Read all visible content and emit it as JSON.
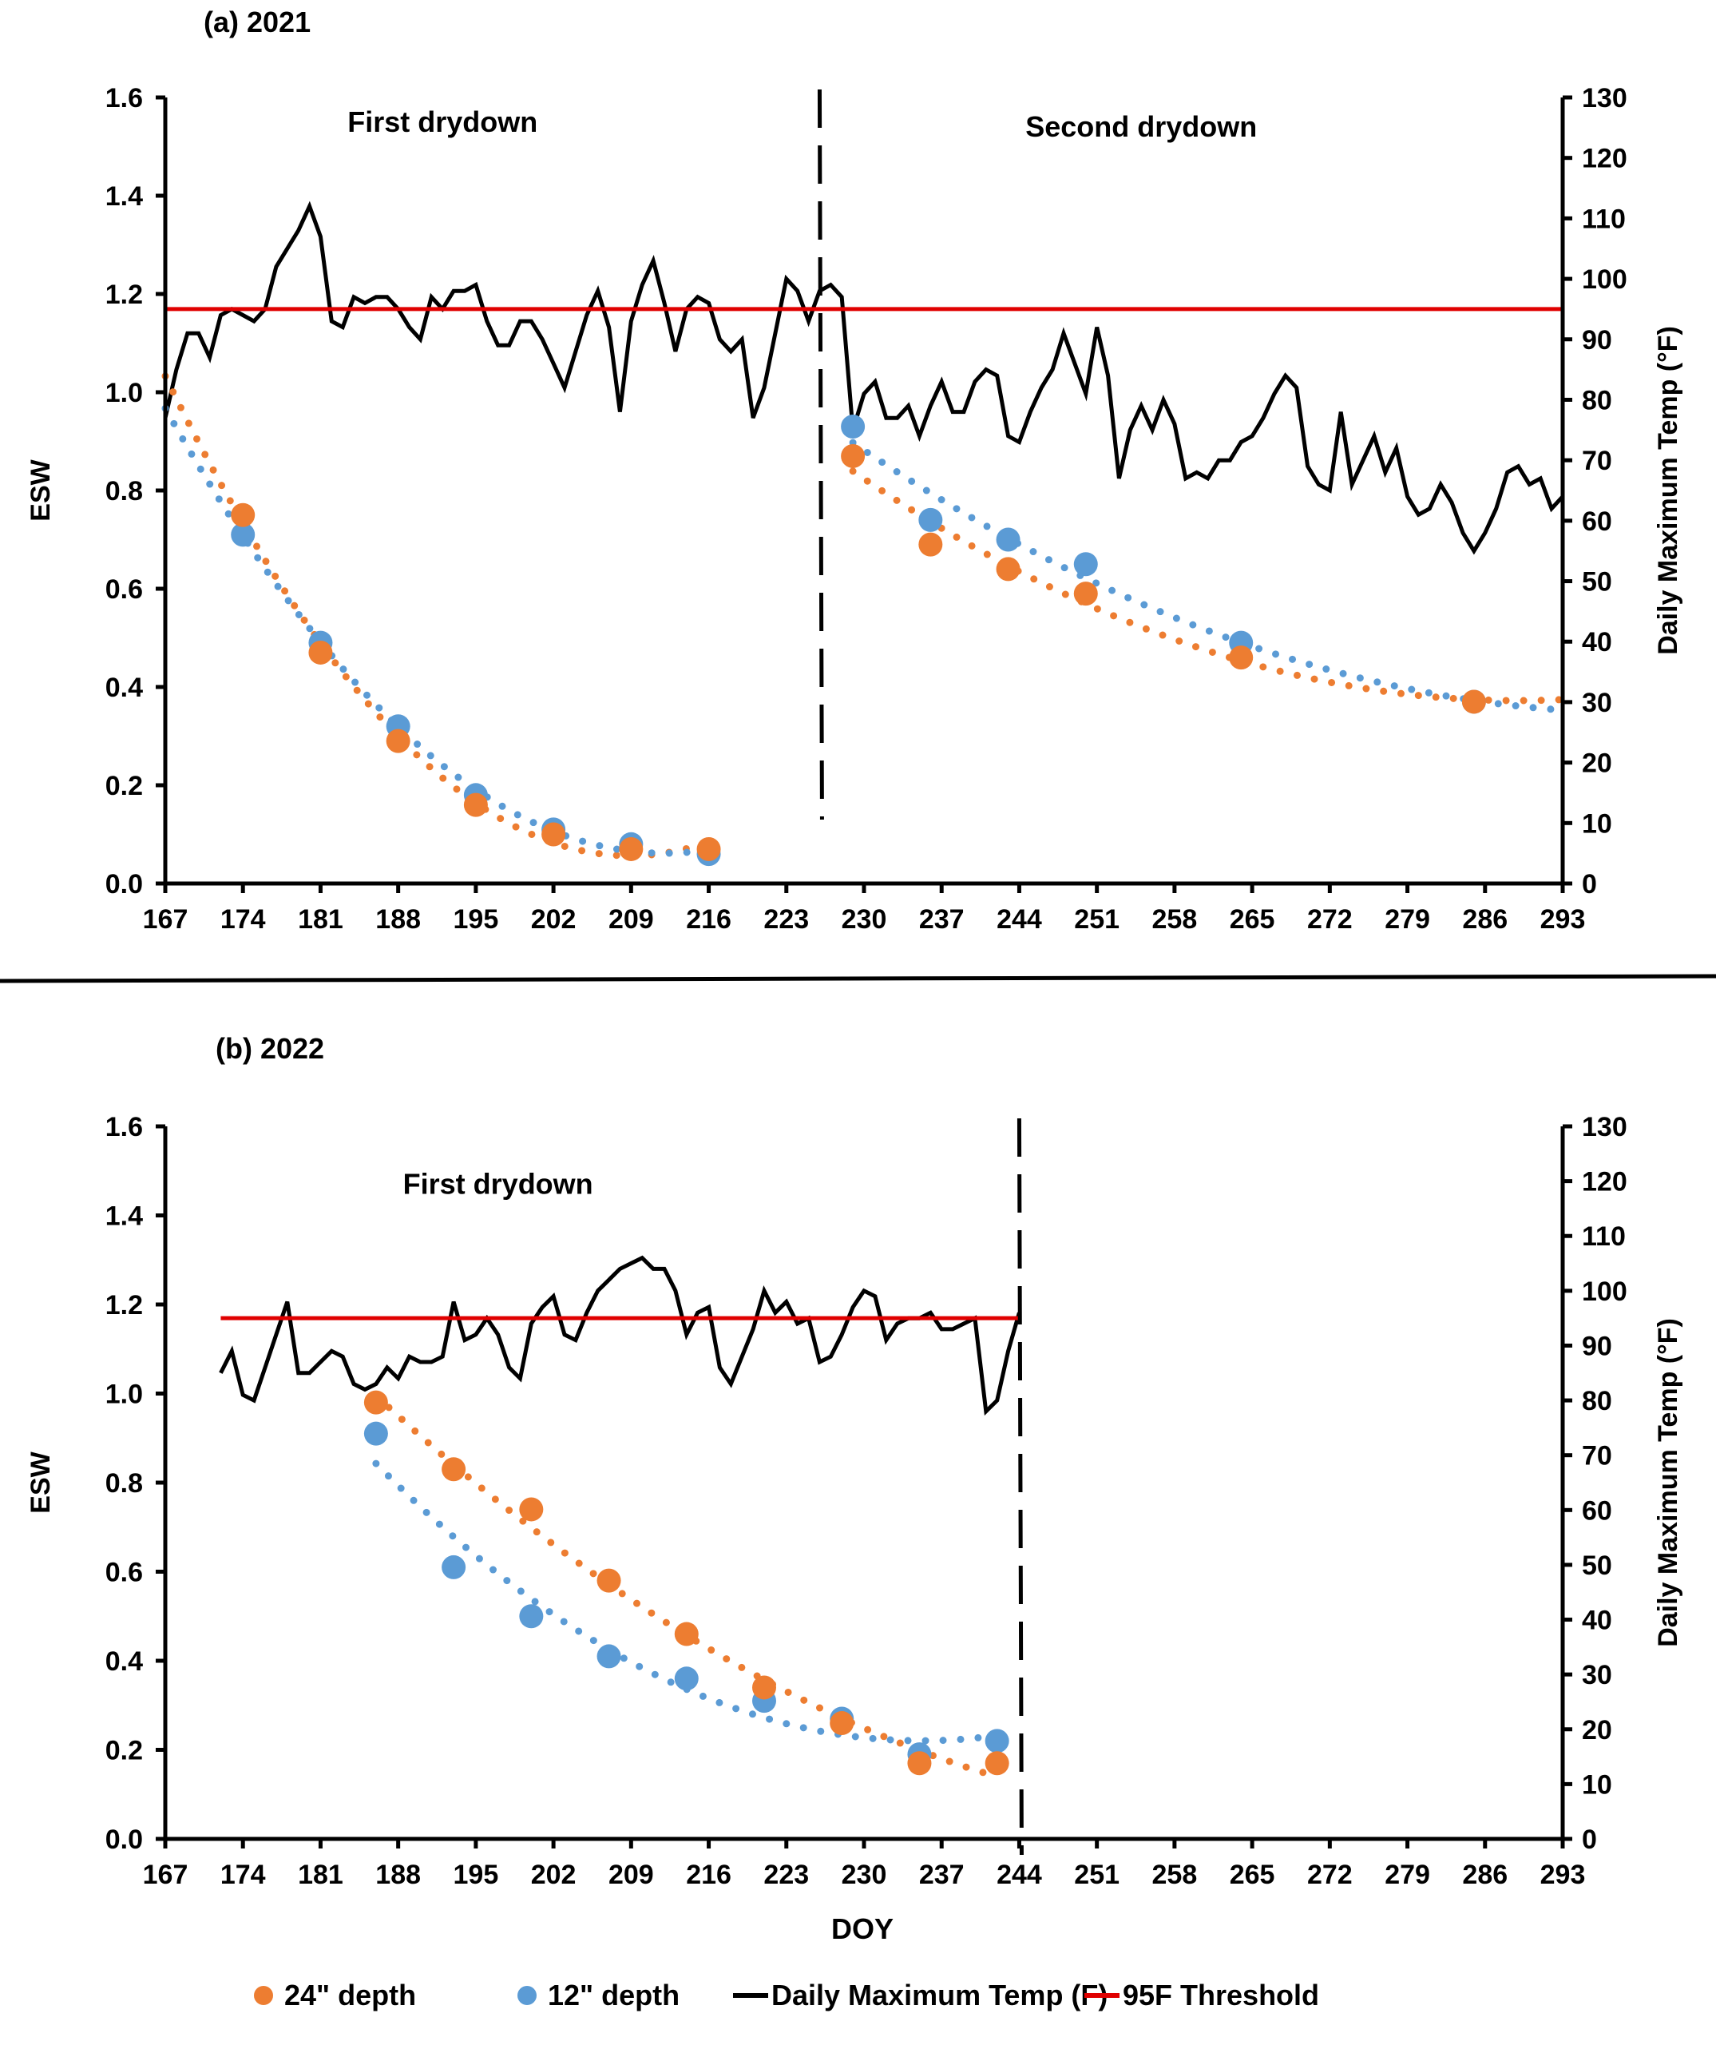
{
  "colors": {
    "depth24": "#ED7D31",
    "depth12": "#5B9BD5",
    "temp": "#000000",
    "threshold": "#E00000"
  },
  "legend": {
    "items": [
      {
        "label": "24\" depth",
        "kind": "dot",
        "color_key": "depth24"
      },
      {
        "label": "12\" depth",
        "kind": "dot",
        "color_key": "depth12"
      },
      {
        "label": "Daily Maximum Temp (F)",
        "kind": "line",
        "color_key": "temp"
      },
      {
        "label": "95F Threshold",
        "kind": "line",
        "color_key": "threshold"
      }
    ],
    "placement": "bottom"
  },
  "xlabel": "DOY",
  "chart_data": [
    {
      "type": "scatter+line",
      "title": "(a) 2021",
      "ylabel": "ESW",
      "y2label": "Daily Maximum Temp (°F)",
      "xlim": [
        167,
        293
      ],
      "ylim": [
        0,
        1.6
      ],
      "y2lim": [
        0,
        130
      ],
      "x_ticks": [
        167,
        174,
        181,
        188,
        195,
        202,
        209,
        216,
        223,
        230,
        237,
        244,
        251,
        258,
        265,
        272,
        279,
        286,
        293
      ],
      "y_ticks": [
        "0.0",
        "0.2",
        "0.4",
        "0.6",
        "0.8",
        "1.0",
        "1.2",
        "1.4",
        "1.6"
      ],
      "y2_ticks": [
        0,
        10,
        20,
        30,
        40,
        50,
        60,
        70,
        80,
        90,
        100,
        110,
        120,
        130
      ],
      "annotations": [
        {
          "text": "First drydown",
          "x": 192,
          "y": 1.55
        },
        {
          "text": "Second drydown",
          "x": 255,
          "y": 1.54
        }
      ],
      "divider_doy": 226,
      "threshold_f": 95,
      "series": [
        {
          "name": "24\" depth",
          "x": [
            174,
            181,
            188,
            195,
            202,
            209,
            216,
            229,
            236,
            243,
            250,
            264,
            285
          ],
          "y": [
            0.75,
            0.47,
            0.29,
            0.16,
            0.1,
            0.07,
            0.07,
            0.87,
            0.69,
            0.64,
            0.59,
            0.46,
            0.37
          ]
        },
        {
          "name": "12\" depth",
          "x": [
            174,
            181,
            188,
            195,
            202,
            209,
            216,
            229,
            236,
            243,
            250,
            264,
            285
          ],
          "y": [
            0.71,
            0.49,
            0.32,
            0.18,
            0.11,
            0.08,
            0.06,
            0.93,
            0.74,
            0.7,
            0.65,
            0.49,
            0.37
          ]
        },
        {
          "name": "Daily Maximum Temp (F)",
          "x_start": 167,
          "y": [
            77,
            85,
            91,
            91,
            87,
            94,
            95,
            94,
            93,
            95,
            102,
            105,
            108,
            112,
            107,
            93,
            92,
            97,
            96,
            97,
            97,
            95,
            92,
            90,
            97,
            95,
            98,
            98,
            99,
            93,
            89,
            89,
            93,
            93,
            90,
            86,
            82,
            88,
            94,
            98,
            92,
            78,
            93,
            99,
            103,
            96,
            88,
            95,
            97,
            96,
            90,
            88,
            90,
            77,
            82,
            91,
            100,
            98,
            93,
            98,
            99,
            97,
            75,
            81,
            83,
            77,
            77,
            79,
            74,
            79,
            83,
            78,
            78,
            83,
            85,
            84,
            74,
            73,
            78,
            82,
            85,
            91,
            86,
            81,
            92,
            84,
            67,
            75,
            79,
            75,
            80,
            76,
            67,
            68,
            67,
            70,
            70,
            73,
            74,
            77,
            81,
            84,
            82,
            69,
            66,
            65,
            78,
            66,
            70,
            74,
            68,
            72,
            64,
            61,
            62,
            66,
            63,
            58,
            55,
            58,
            62,
            68,
            69,
            66,
            67,
            62,
            64
          ]
        },
        {
          "name": "95F Threshold",
          "y": 95
        }
      ]
    },
    {
      "type": "scatter+line",
      "title": "(b) 2022",
      "ylabel": "ESW",
      "y2label": "Daily Maximum Temp (°F)",
      "xlim": [
        167,
        293
      ],
      "ylim": [
        0,
        1.6
      ],
      "y2lim": [
        0,
        130
      ],
      "x_ticks": [
        167,
        174,
        181,
        188,
        195,
        202,
        209,
        216,
        223,
        230,
        237,
        244,
        251,
        258,
        265,
        272,
        279,
        286,
        293
      ],
      "y_ticks": [
        "0.0",
        "0.2",
        "0.4",
        "0.6",
        "0.8",
        "1.0",
        "1.2",
        "1.4",
        "1.6"
      ],
      "y2_ticks": [
        0,
        10,
        20,
        30,
        40,
        50,
        60,
        70,
        80,
        90,
        100,
        110,
        120,
        130
      ],
      "annotations": [
        {
          "text": "First drydown",
          "x": 197,
          "y": 1.47
        }
      ],
      "divider_doy": 244,
      "threshold_f": 95,
      "series": [
        {
          "name": "24\" depth",
          "x": [
            186,
            193,
            200,
            207,
            214,
            221,
            228,
            235,
            242
          ],
          "y": [
            0.98,
            0.83,
            0.74,
            0.58,
            0.46,
            0.34,
            0.26,
            0.17,
            0.17
          ]
        },
        {
          "name": "12\" depth",
          "x": [
            186,
            193,
            200,
            207,
            214,
            221,
            228,
            235,
            242
          ],
          "y": [
            0.91,
            0.61,
            0.5,
            0.41,
            0.36,
            0.31,
            0.27,
            0.19,
            0.22
          ]
        },
        {
          "name": "Daily Maximum Temp (F)",
          "x_start": 172,
          "y": [
            85,
            89,
            81,
            80,
            86,
            92,
            98,
            85,
            85,
            87,
            89,
            88,
            83,
            82,
            83,
            86,
            84,
            88,
            87,
            87,
            88,
            98,
            91,
            92,
            95,
            92,
            86,
            84,
            94,
            97,
            99,
            92,
            91,
            96,
            100,
            102,
            104,
            105,
            106,
            104,
            104,
            100,
            92,
            96,
            97,
            86,
            83,
            88,
            93,
            100,
            96,
            98,
            94,
            95,
            87,
            88,
            92,
            97,
            100,
            99,
            91,
            94,
            95,
            95,
            96,
            93,
            93,
            94,
            95,
            78,
            80,
            89,
            96
          ]
        },
        {
          "name": "95F Threshold",
          "y": 95
        }
      ]
    }
  ]
}
